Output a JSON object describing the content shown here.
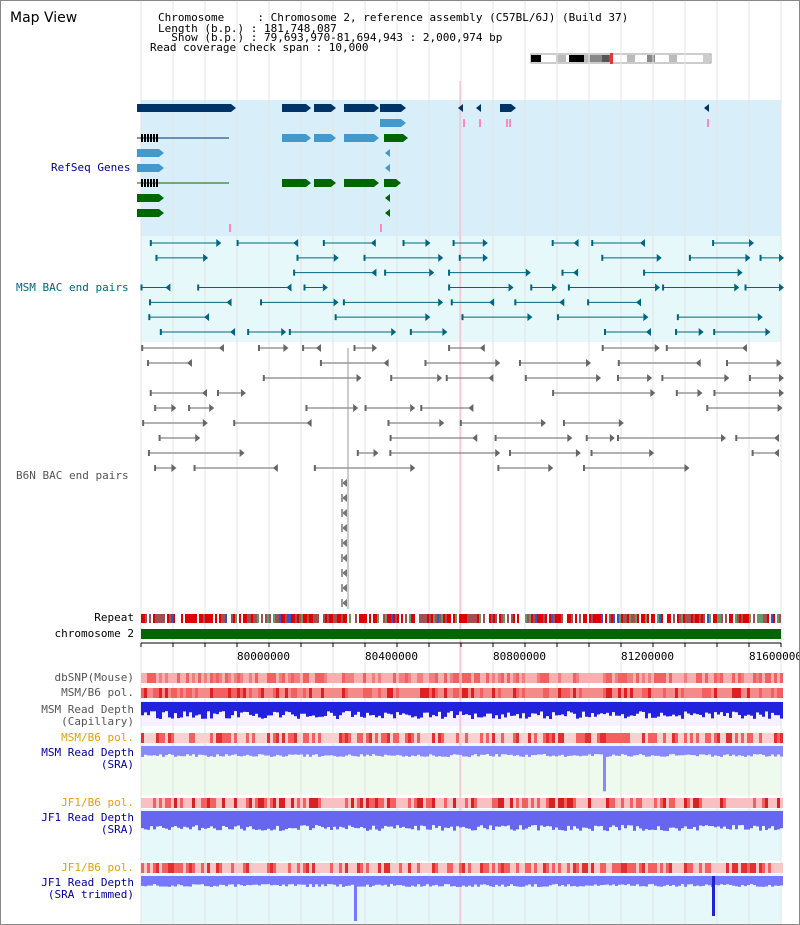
{
  "title": "Map View",
  "info": {
    "lines": [
      "Chromosome     : Chromosome 2, reference assembly (C57BL/6J) (Build 37)",
      "Length (b.p.) : 181,748,087",
      "  Show (b.p.) : 79,693,970-81,694,943 : 2,000,974 bp",
      "Read coverage check span : 10,000"
    ]
  },
  "tracks": {
    "refseq": "RefSeq Genes",
    "msm_bac": "MSM BAC end pairs",
    "b6n_bac": "B6N BAC end pairs",
    "repeat": "Repeat",
    "chromosome": "chromosome 2",
    "dbsnp": "dbSNP(Mouse)",
    "msm_b6_pol_1": "MSM/B6 pol.",
    "msm_read_depth_cap_1": "MSM Read Depth",
    "msm_read_depth_cap_2": "(Capillary)",
    "msm_b6_pol_2": "MSM/B6 pol.",
    "msm_read_depth_sra_1": "MSM Read Depth",
    "msm_read_depth_sra_2": "(SRA)",
    "jf1_b6_pol_1": "JF1/B6 pol.",
    "jf1_read_depth_sra_1": "JF1 Read Depth",
    "jf1_read_depth_sra_2": "(SRA)",
    "jf1_b6_pol_2": "JF1/B6 pol.",
    "jf1_read_depth_trim_1": "JF1 Read Depth",
    "jf1_read_depth_trim_2": "(SRA trimmed)"
  },
  "axis_ticks": [
    "80000000",
    "80400000",
    "80800000",
    "81200000",
    "81600000"
  ],
  "colors": {
    "refseq_bg": "#d8eff9",
    "msm_bac_bg": "#e6f8fa",
    "navy": "#003366",
    "teal": "#006680",
    "green": "#006600",
    "lightblue": "#4499cc",
    "gray": "#666666",
    "pink": "#ff88bb",
    "refseq_label": "#000099",
    "msm_label": "#006680",
    "gray_label": "#555555",
    "orange_label": "#e6a000",
    "blue_label": "#000099"
  }
}
